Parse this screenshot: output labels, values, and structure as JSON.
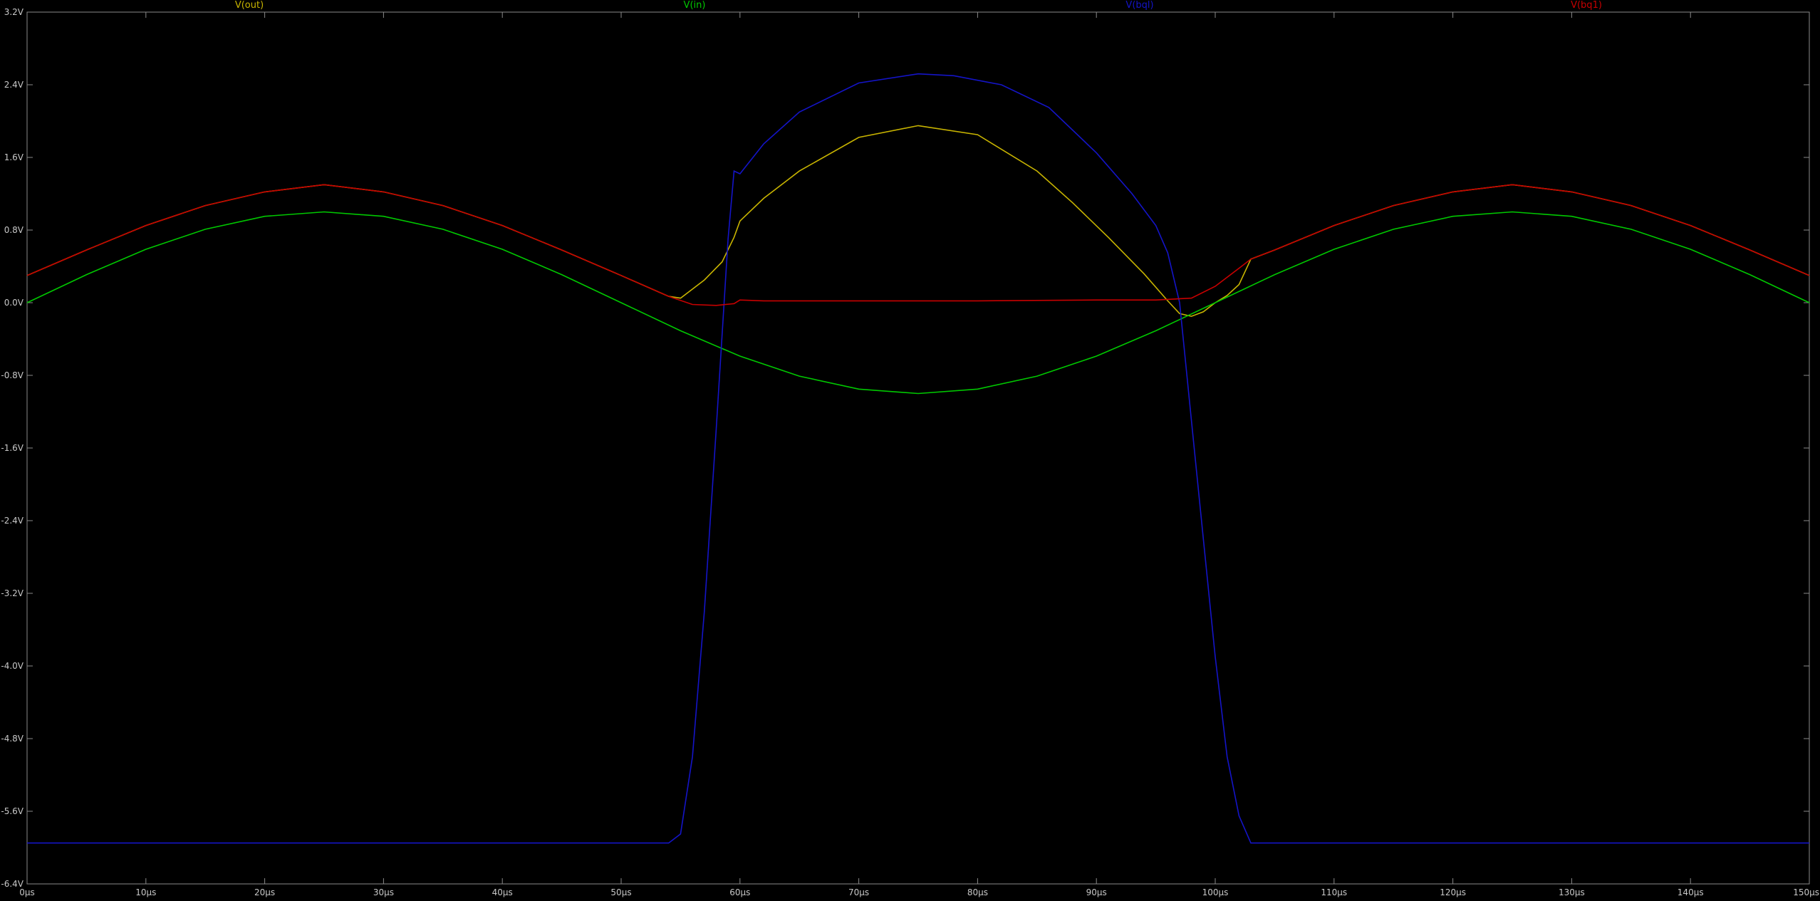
{
  "chart_data": {
    "type": "line",
    "title": "",
    "xlabel": "",
    "ylabel": "",
    "xlim": [
      0,
      150
    ],
    "ylim": [
      -6.4,
      3.2
    ],
    "grid": false,
    "x_ticks": [
      {
        "value": 0,
        "label": "0µs"
      },
      {
        "value": 10,
        "label": "10µs"
      },
      {
        "value": 20,
        "label": "20µs"
      },
      {
        "value": 30,
        "label": "30µs"
      },
      {
        "value": 40,
        "label": "40µs"
      },
      {
        "value": 50,
        "label": "50µs"
      },
      {
        "value": 60,
        "label": "60µs"
      },
      {
        "value": 70,
        "label": "70µs"
      },
      {
        "value": 80,
        "label": "80µs"
      },
      {
        "value": 90,
        "label": "90µs"
      },
      {
        "value": 100,
        "label": "100µs"
      },
      {
        "value": 110,
        "label": "110µs"
      },
      {
        "value": 120,
        "label": "120µs"
      },
      {
        "value": 130,
        "label": "130µs"
      },
      {
        "value": 140,
        "label": "140µs"
      },
      {
        "value": 150,
        "label": "150µs"
      }
    ],
    "y_ticks": [
      {
        "value": 3.2,
        "label": "3.2V"
      },
      {
        "value": 2.4,
        "label": "2.4V"
      },
      {
        "value": 1.6,
        "label": "1.6V"
      },
      {
        "value": 0.8,
        "label": "0.8V"
      },
      {
        "value": 0.0,
        "label": "0.0V"
      },
      {
        "value": -0.8,
        "label": "-0.8V"
      },
      {
        "value": -1.6,
        "label": "-1.6V"
      },
      {
        "value": -2.4,
        "label": "-2.4V"
      },
      {
        "value": -3.2,
        "label": "-3.2V"
      },
      {
        "value": -4.0,
        "label": "-4.0V"
      },
      {
        "value": -4.8,
        "label": "-4.8V"
      },
      {
        "value": -5.6,
        "label": "-5.6V"
      },
      {
        "value": -6.4,
        "label": "-6.4V"
      }
    ],
    "legend_position": "top",
    "series": [
      {
        "name": "V(out)",
        "color": "#c8b400",
        "x": [
          0,
          5,
          10,
          15,
          20,
          25,
          30,
          35,
          40,
          45,
          50,
          54,
          55,
          57,
          58.5,
          59.5,
          60,
          62,
          65,
          70,
          75,
          80,
          85,
          88,
          91,
          94,
          96,
          97,
          98,
          99,
          100,
          101,
          102,
          103,
          105,
          110,
          115,
          120,
          125,
          130,
          135,
          140,
          145,
          150
        ],
        "y": [
          0.3,
          0.58,
          0.85,
          1.07,
          1.22,
          1.3,
          1.22,
          1.07,
          0.85,
          0.58,
          0.3,
          0.07,
          0.05,
          0.25,
          0.45,
          0.72,
          0.9,
          1.15,
          1.45,
          1.82,
          1.95,
          1.85,
          1.45,
          1.1,
          0.72,
          0.32,
          0.02,
          -0.12,
          -0.15,
          -0.1,
          0.0,
          0.08,
          0.2,
          0.48,
          0.58,
          0.85,
          1.07,
          1.22,
          1.3,
          1.22,
          1.07,
          0.85,
          0.58,
          0.3
        ]
      },
      {
        "name": "V(in)",
        "color": "#00c800",
        "x": [
          0,
          5,
          10,
          15,
          20,
          25,
          30,
          35,
          40,
          45,
          50,
          55,
          60,
          65,
          70,
          75,
          80,
          85,
          90,
          95,
          100,
          105,
          110,
          115,
          120,
          125,
          130,
          135,
          140,
          145,
          150
        ],
        "y": [
          0.0,
          0.309,
          0.588,
          0.809,
          0.951,
          1.0,
          0.951,
          0.809,
          0.588,
          0.309,
          0.0,
          -0.309,
          -0.588,
          -0.809,
          -0.951,
          -1.0,
          -0.951,
          -0.809,
          -0.588,
          -0.309,
          0.0,
          0.309,
          0.588,
          0.809,
          0.951,
          1.0,
          0.951,
          0.809,
          0.588,
          0.309,
          0.0
        ]
      },
      {
        "name": "V(bql)",
        "color": "#1414c8",
        "x": [
          0,
          10,
          20,
          30,
          40,
          50,
          54,
          55,
          56,
          57,
          58,
          59,
          59.5,
          60,
          62,
          65,
          70,
          75,
          78,
          82,
          86,
          90,
          93,
          95,
          96,
          97,
          98,
          99,
          100,
          101,
          102,
          103,
          110,
          120,
          130,
          140,
          150
        ],
        "y": [
          -5.95,
          -5.95,
          -5.95,
          -5.95,
          -5.95,
          -5.95,
          -5.95,
          -5.85,
          -5.0,
          -3.4,
          -1.4,
          0.7,
          1.45,
          1.42,
          1.75,
          2.1,
          2.42,
          2.52,
          2.5,
          2.4,
          2.15,
          1.65,
          1.2,
          0.85,
          0.55,
          0.0,
          -1.3,
          -2.6,
          -3.9,
          -5.0,
          -5.65,
          -5.95,
          -5.95,
          -5.95,
          -5.95,
          -5.95,
          -5.95
        ]
      },
      {
        "name": "V(bq1)",
        "color": "#c80000",
        "x": [
          0,
          5,
          10,
          15,
          20,
          25,
          30,
          35,
          40,
          45,
          50,
          54,
          56,
          58,
          59.5,
          60,
          62,
          70,
          80,
          90,
          95,
          98,
          100,
          102,
          103,
          105,
          110,
          115,
          120,
          125,
          130,
          135,
          140,
          145,
          150
        ],
        "y": [
          0.3,
          0.58,
          0.85,
          1.07,
          1.22,
          1.3,
          1.22,
          1.07,
          0.85,
          0.58,
          0.3,
          0.07,
          -0.02,
          -0.03,
          -0.01,
          0.03,
          0.02,
          0.02,
          0.02,
          0.03,
          0.03,
          0.05,
          0.18,
          0.38,
          0.48,
          0.58,
          0.85,
          1.07,
          1.22,
          1.3,
          1.22,
          1.07,
          0.85,
          0.58,
          0.3
        ]
      }
    ]
  }
}
